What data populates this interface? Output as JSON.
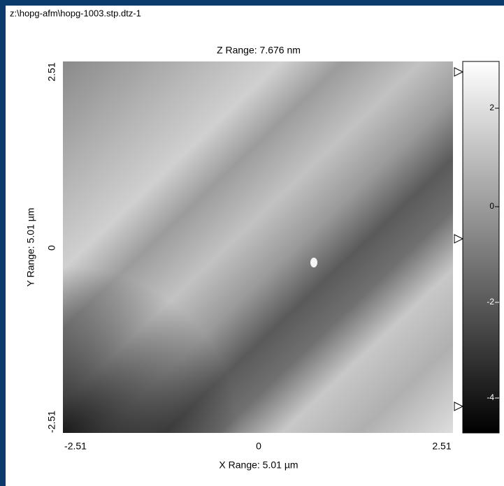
{
  "window": {
    "title": "z:\\hopg-afm\\hopg-1003.stp.dtz-1"
  },
  "image": {
    "title": "Z Range:  7.676 nm",
    "x_label": "X Range:  5.01 µm",
    "y_label": "Y Range:  5.01 µm",
    "x_ticks": [
      "-2.51",
      "0",
      "2.51"
    ],
    "y_ticks": [
      "2.51",
      "0",
      "-2.51"
    ]
  },
  "colorbar": {
    "ticks": [
      "2",
      "0",
      "-2",
      "-4"
    ]
  }
}
